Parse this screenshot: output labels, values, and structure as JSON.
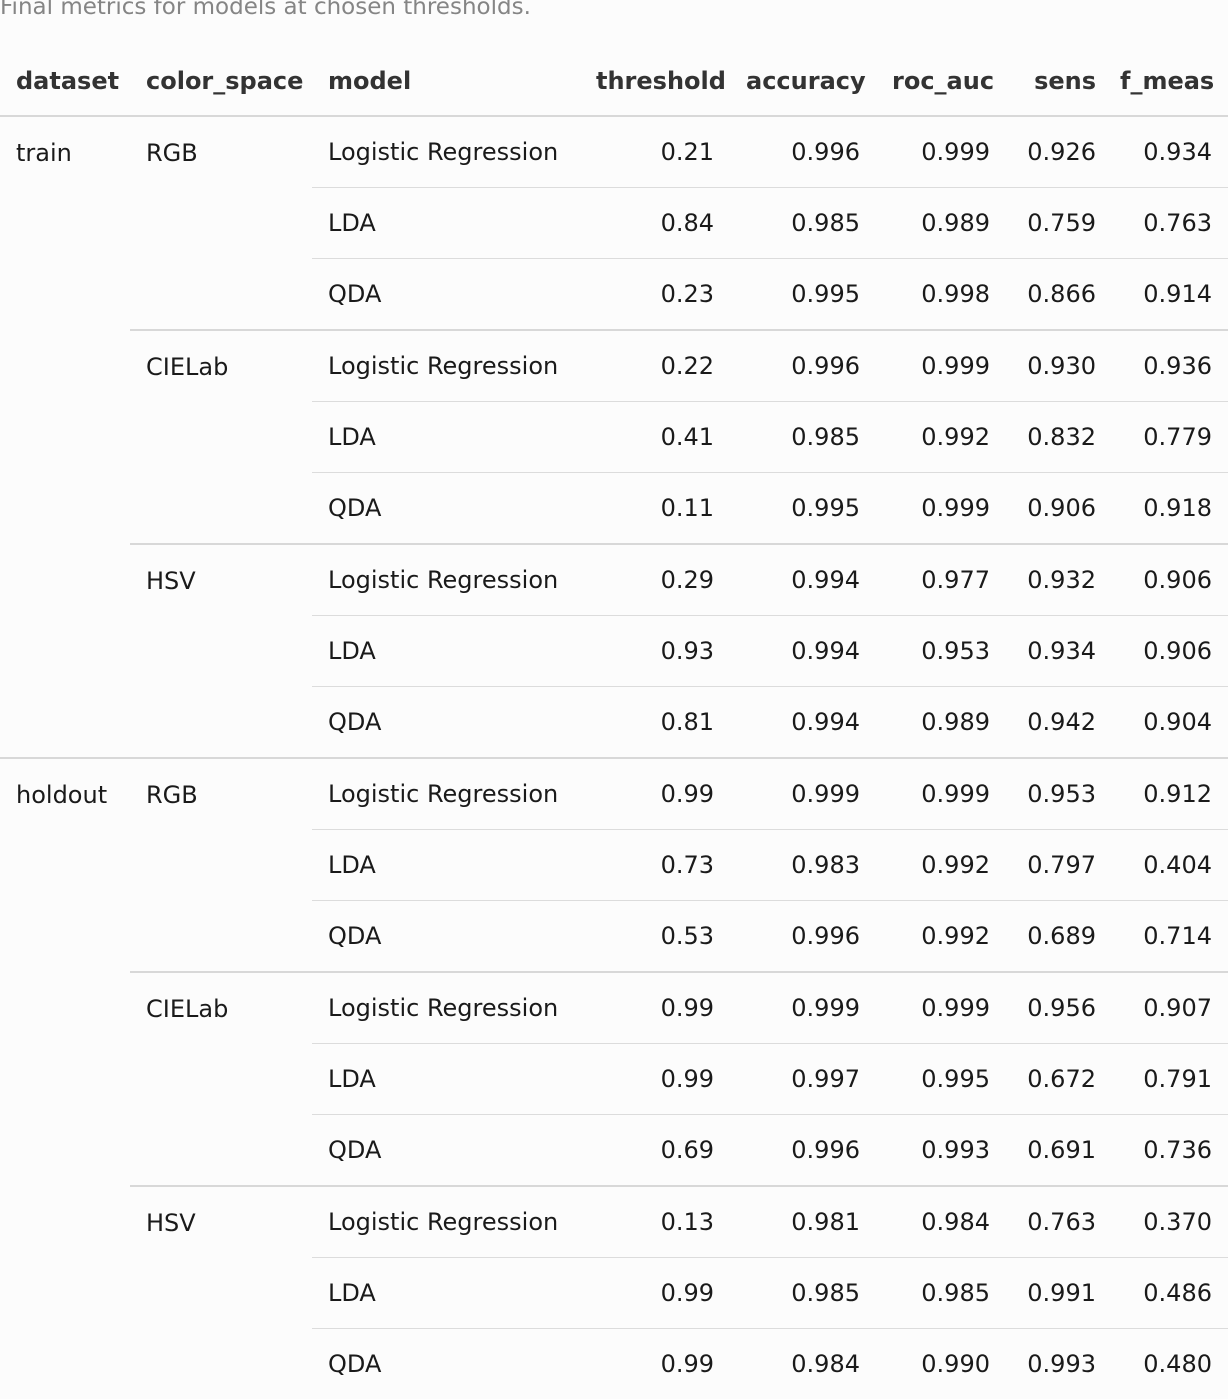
{
  "caption": "Final metrics for models at chosen thresholds.",
  "columns": [
    "dataset",
    "color_space",
    "model",
    "threshold",
    "accuracy",
    "roc_auc",
    "sens",
    "f_meas"
  ],
  "groups": [
    {
      "dataset": "train",
      "color_spaces": [
        {
          "name": "RGB",
          "rows": [
            {
              "model": "Logistic Regression",
              "threshold": "0.21",
              "accuracy": "0.996",
              "roc_auc": "0.999",
              "sens": "0.926",
              "f_meas": "0.934"
            },
            {
              "model": "LDA",
              "threshold": "0.84",
              "accuracy": "0.985",
              "roc_auc": "0.989",
              "sens": "0.759",
              "f_meas": "0.763"
            },
            {
              "model": "QDA",
              "threshold": "0.23",
              "accuracy": "0.995",
              "roc_auc": "0.998",
              "sens": "0.866",
              "f_meas": "0.914"
            }
          ]
        },
        {
          "name": "CIELab",
          "rows": [
            {
              "model": "Logistic Regression",
              "threshold": "0.22",
              "accuracy": "0.996",
              "roc_auc": "0.999",
              "sens": "0.930",
              "f_meas": "0.936"
            },
            {
              "model": "LDA",
              "threshold": "0.41",
              "accuracy": "0.985",
              "roc_auc": "0.992",
              "sens": "0.832",
              "f_meas": "0.779"
            },
            {
              "model": "QDA",
              "threshold": "0.11",
              "accuracy": "0.995",
              "roc_auc": "0.999",
              "sens": "0.906",
              "f_meas": "0.918"
            }
          ]
        },
        {
          "name": "HSV",
          "rows": [
            {
              "model": "Logistic Regression",
              "threshold": "0.29",
              "accuracy": "0.994",
              "roc_auc": "0.977",
              "sens": "0.932",
              "f_meas": "0.906"
            },
            {
              "model": "LDA",
              "threshold": "0.93",
              "accuracy": "0.994",
              "roc_auc": "0.953",
              "sens": "0.934",
              "f_meas": "0.906"
            },
            {
              "model": "QDA",
              "threshold": "0.81",
              "accuracy": "0.994",
              "roc_auc": "0.989",
              "sens": "0.942",
              "f_meas": "0.904"
            }
          ]
        }
      ]
    },
    {
      "dataset": "holdout",
      "color_spaces": [
        {
          "name": "RGB",
          "rows": [
            {
              "model": "Logistic Regression",
              "threshold": "0.99",
              "accuracy": "0.999",
              "roc_auc": "0.999",
              "sens": "0.953",
              "f_meas": "0.912"
            },
            {
              "model": "LDA",
              "threshold": "0.73",
              "accuracy": "0.983",
              "roc_auc": "0.992",
              "sens": "0.797",
              "f_meas": "0.404"
            },
            {
              "model": "QDA",
              "threshold": "0.53",
              "accuracy": "0.996",
              "roc_auc": "0.992",
              "sens": "0.689",
              "f_meas": "0.714"
            }
          ]
        },
        {
          "name": "CIELab",
          "rows": [
            {
              "model": "Logistic Regression",
              "threshold": "0.99",
              "accuracy": "0.999",
              "roc_auc": "0.999",
              "sens": "0.956",
              "f_meas": "0.907"
            },
            {
              "model": "LDA",
              "threshold": "0.99",
              "accuracy": "0.997",
              "roc_auc": "0.995",
              "sens": "0.672",
              "f_meas": "0.791"
            },
            {
              "model": "QDA",
              "threshold": "0.69",
              "accuracy": "0.996",
              "roc_auc": "0.993",
              "sens": "0.691",
              "f_meas": "0.736"
            }
          ]
        },
        {
          "name": "HSV",
          "rows": [
            {
              "model": "Logistic Regression",
              "threshold": "0.13",
              "accuracy": "0.981",
              "roc_auc": "0.984",
              "sens": "0.763",
              "f_meas": "0.370"
            },
            {
              "model": "LDA",
              "threshold": "0.99",
              "accuracy": "0.985",
              "roc_auc": "0.985",
              "sens": "0.991",
              "f_meas": "0.486"
            },
            {
              "model": "QDA",
              "threshold": "0.99",
              "accuracy": "0.984",
              "roc_auc": "0.990",
              "sens": "0.993",
              "f_meas": "0.480"
            }
          ]
        }
      ]
    }
  ]
}
